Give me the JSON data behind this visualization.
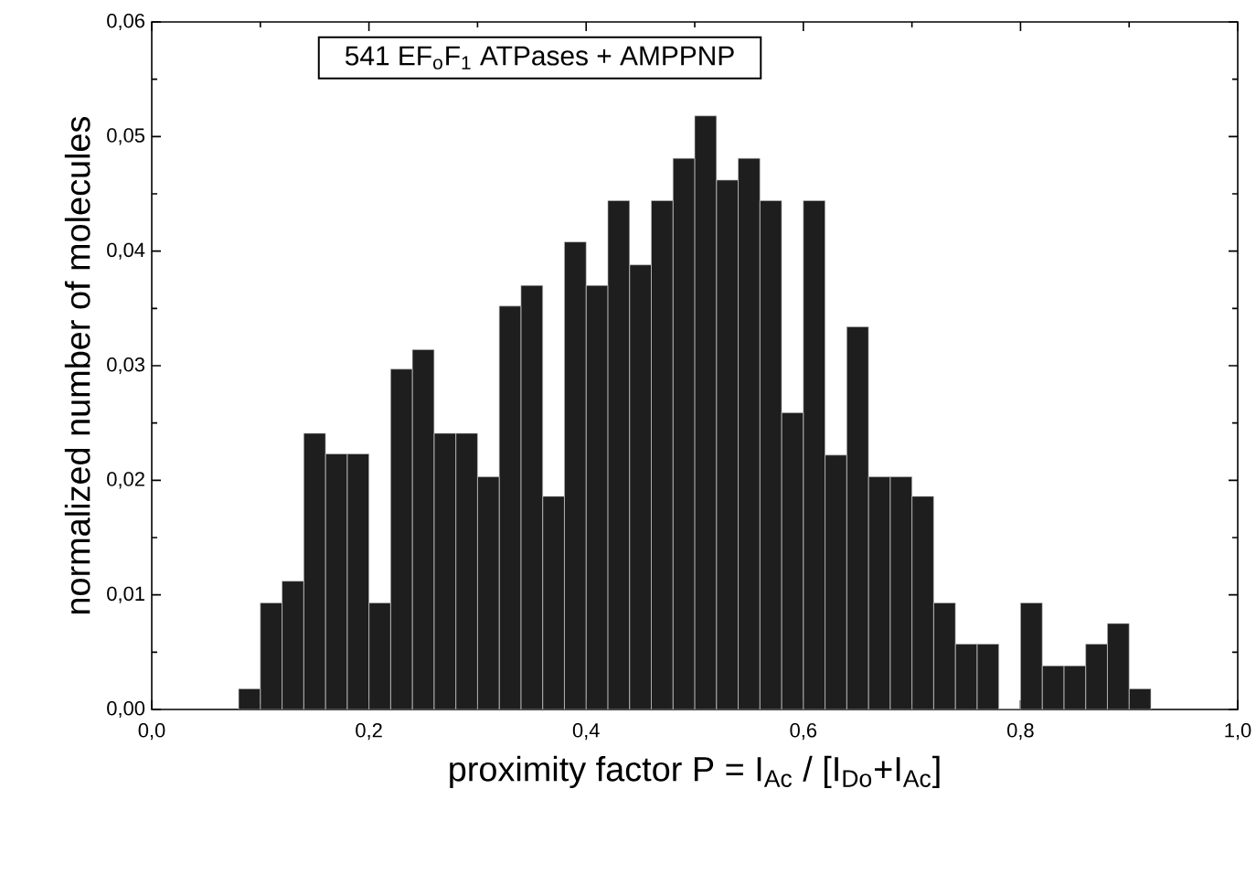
{
  "chart_data": {
    "type": "histogram",
    "title": "541   EF$_{o}$F$_{1}$ ATPases + AMPPNP",
    "xlabel": "proximity factor P = I$_{Ac}$ / [I$_{Do}$+I$_{Ac}$]",
    "ylabel": "normalized number of molecules",
    "bins": [
      0.08,
      0.1,
      0.12,
      0.14,
      0.16,
      0.18,
      0.2,
      0.22,
      0.24,
      0.26,
      0.28,
      0.3,
      0.32,
      0.34,
      0.36,
      0.38,
      0.4,
      0.42,
      0.44,
      0.46,
      0.48,
      0.5,
      0.52,
      0.54,
      0.56,
      0.58,
      0.6,
      0.62,
      0.64,
      0.66,
      0.68,
      0.7,
      0.72,
      0.74,
      0.76,
      0.78,
      0.8,
      0.82,
      0.84,
      0.86,
      0.88,
      0.9,
      0.92
    ],
    "values": [
      0.0018,
      0.0093,
      0.0112,
      0.0241,
      0.0223,
      0.0223,
      0.0093,
      0.0297,
      0.0314,
      0.0241,
      0.0241,
      0.0203,
      0.0352,
      0.037,
      0.0186,
      0.0408,
      0.037,
      0.0444,
      0.0388,
      0.0444,
      0.0481,
      0.0518,
      0.0462,
      0.0481,
      0.0444,
      0.0259,
      0.0444,
      0.0222,
      0.0334,
      0.0203,
      0.0203,
      0.0186,
      0.0093,
      0.0057,
      0.0057,
      0,
      0.0093,
      0.0038,
      0.0038,
      0.0057,
      0.0075,
      0.0018
    ],
    "color": "#1e1e1e",
    "xlim": [
      0,
      1.0
    ],
    "ylim": [
      0,
      0.06
    ],
    "xticks": [
      {
        "value": 0,
        "label": "0,0"
      },
      {
        "value": 0.2,
        "label": "0,2"
      },
      {
        "value": 0.4,
        "label": "0,4"
      },
      {
        "value": 0.6,
        "label": "0,6"
      },
      {
        "value": 0.8,
        "label": "0,8"
      },
      {
        "value": 1.0,
        "label": "1,0"
      }
    ],
    "yticks": [
      {
        "value": 0,
        "label": "0,00"
      },
      {
        "value": 0.01,
        "label": "0,01"
      },
      {
        "value": 0.02,
        "label": "0,02"
      },
      {
        "value": 0.03,
        "label": "0,03"
      },
      {
        "value": 0.04,
        "label": "0,04"
      },
      {
        "value": 0.05,
        "label": "0,05"
      },
      {
        "value": 0.06,
        "label": "0,06"
      }
    ]
  }
}
